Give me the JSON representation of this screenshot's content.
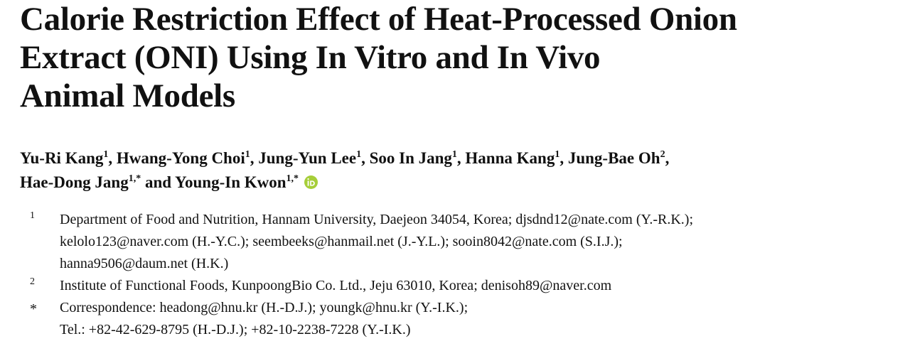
{
  "title_lines": [
    "Calorie Restriction Effect of Heat-Processed Onion",
    "Extract (ONI) Using In Vitro and In Vivo",
    "Animal Models"
  ],
  "authors": [
    {
      "name": "Yu-Ri Kang",
      "sup": "1",
      "sep": ", "
    },
    {
      "name": "Hwang-Yong Choi",
      "sup": "1",
      "sep": ", "
    },
    {
      "name": "Jung-Yun Lee",
      "sup": "1",
      "sep": ", "
    },
    {
      "name": "Soo In Jang",
      "sup": "1",
      "sep": ", "
    },
    {
      "name": "Hanna Kang",
      "sup": "1",
      "sep": ", "
    },
    {
      "name": "Jung-Bae Oh",
      "sup": "2",
      "sep": ","
    },
    {
      "name": "Hae-Dong Jang",
      "sup": "1,*",
      "sep": " and "
    },
    {
      "name": "Young-In Kwon",
      "sup": "1,*",
      "sep": ""
    }
  ],
  "orcid_color": "#a6ce39",
  "affiliations": [
    {
      "mark": "1",
      "lines": [
        "Department of Food and Nutrition, Hannam University, Daejeon 34054, Korea; djsdnd12@nate.com (Y.-R.K.);",
        "kelolo123@naver.com (H.-Y.C.); seembeeks@hanmail.net (J.-Y.L.); sooin8042@nate.com (S.I.J.);",
        "hanna9506@daum.net (H.K.)"
      ]
    },
    {
      "mark": "2",
      "lines": [
        "Institute of Functional Foods, KunpoongBio Co.  Ltd., Jeju 63010, Korea; denisoh89@naver.com"
      ]
    },
    {
      "mark": "*",
      "lines": [
        "Correspondence: headong@hnu.kr (H.-D.J.); youngk@hnu.kr (Y.-I.K.);",
        "Tel.: +82-42-629-8795 (H.-D.J.); +82-10-2238-7228 (Y.-I.K.)"
      ]
    }
  ]
}
